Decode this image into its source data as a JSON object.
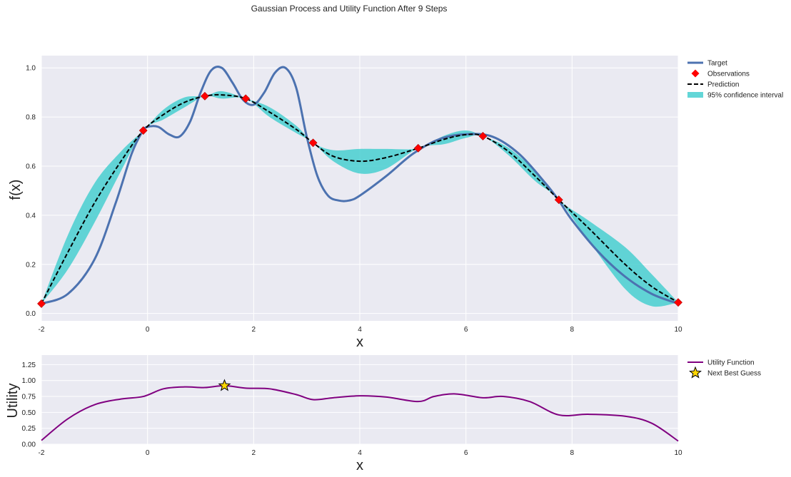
{
  "figure": {
    "suptitle": "Gaussian Process and Utility Function After 9 Steps",
    "background": "#eaeaf2",
    "grid_color": "#ffffff"
  },
  "chart_data": [
    {
      "type": "line",
      "xlabel": "x",
      "ylabel": "f(x)",
      "xlim": [
        -2,
        10
      ],
      "ylim": [
        -0.03,
        1.05
      ],
      "xticks": [
        -2,
        0,
        2,
        4,
        6,
        8,
        10
      ],
      "yticks": [
        0.0,
        0.2,
        0.4,
        0.6,
        0.8,
        1.0
      ],
      "grid": true,
      "legend_position": "outside-top-right",
      "legend": [
        "Target",
        "Observations",
        "Prediction",
        "95% confidence interval"
      ],
      "colors": {
        "target": "#4c72b0",
        "observations": "#ff0000",
        "prediction": "#000000",
        "confidence": "#48cfd0"
      },
      "target": {
        "x": [
          -2,
          -1.5,
          -1,
          -0.6,
          -0.3,
          -0.1,
          0,
          0.2,
          0.4,
          0.6,
          0.8,
          1.0,
          1.2,
          1.4,
          1.6,
          1.8,
          2.0,
          2.2,
          2.4,
          2.6,
          2.8,
          3.0,
          3.2,
          3.4,
          3.6,
          3.8,
          4.0,
          4.5,
          5.0,
          5.5,
          6.0,
          6.5,
          7.0,
          7.5,
          7.75,
          8.0,
          8.5,
          9.0,
          9.5,
          10
        ],
        "y": [
          0.04,
          0.08,
          0.22,
          0.45,
          0.65,
          0.74,
          0.76,
          0.76,
          0.73,
          0.72,
          0.78,
          0.9,
          0.99,
          1.0,
          0.94,
          0.87,
          0.85,
          0.9,
          0.98,
          1.0,
          0.92,
          0.72,
          0.56,
          0.48,
          0.46,
          0.46,
          0.48,
          0.56,
          0.65,
          0.71,
          0.73,
          0.72,
          0.65,
          0.53,
          0.46,
          0.38,
          0.25,
          0.15,
          0.08,
          0.04
        ]
      },
      "observations": {
        "x": [
          -2,
          -0.08,
          1.08,
          1.85,
          3.12,
          5.1,
          6.32,
          7.75,
          10
        ],
        "y": [
          0.04,
          0.745,
          0.885,
          0.875,
          0.695,
          0.673,
          0.722,
          0.463,
          0.045
        ]
      },
      "prediction": {
        "x": [
          -2,
          -1.5,
          -1,
          -0.5,
          -0.08,
          0.3,
          0.7,
          1.08,
          1.4,
          1.85,
          2.3,
          2.8,
          3.12,
          3.5,
          4.0,
          4.5,
          5.1,
          5.6,
          6.0,
          6.32,
          6.8,
          7.3,
          7.75,
          8.3,
          9.0,
          9.5,
          10
        ],
        "y": [
          0.04,
          0.25,
          0.45,
          0.62,
          0.745,
          0.81,
          0.86,
          0.885,
          0.89,
          0.875,
          0.82,
          0.75,
          0.695,
          0.64,
          0.62,
          0.635,
          0.673,
          0.71,
          0.728,
          0.722,
          0.66,
          0.56,
          0.463,
          0.35,
          0.2,
          0.11,
          0.045
        ]
      },
      "confidence_interval": {
        "x": [
          -2,
          -1.5,
          -1,
          -0.5,
          -0.08,
          0.3,
          0.7,
          1.08,
          1.4,
          1.85,
          2.3,
          2.8,
          3.12,
          3.5,
          4.0,
          4.5,
          5.1,
          5.6,
          6.0,
          6.32,
          6.8,
          7.3,
          7.75,
          8.3,
          9.0,
          9.5,
          10
        ],
        "lower": [
          0.04,
          0.18,
          0.37,
          0.58,
          0.745,
          0.79,
          0.84,
          0.885,
          0.875,
          0.875,
          0.8,
          0.735,
          0.695,
          0.62,
          0.57,
          0.59,
          0.673,
          0.69,
          0.715,
          0.722,
          0.645,
          0.54,
          0.463,
          0.3,
          0.1,
          0.03,
          0.045
        ],
        "upper": [
          0.04,
          0.32,
          0.53,
          0.66,
          0.745,
          0.83,
          0.88,
          0.885,
          0.905,
          0.875,
          0.84,
          0.765,
          0.695,
          0.665,
          0.67,
          0.67,
          0.673,
          0.725,
          0.745,
          0.722,
          0.675,
          0.58,
          0.463,
          0.38,
          0.27,
          0.16,
          0.045
        ]
      }
    },
    {
      "type": "line",
      "xlabel": "x",
      "ylabel": "Utility",
      "xlim": [
        -2,
        10
      ],
      "ylim": [
        0,
        1.4
      ],
      "xticks": [
        -2,
        0,
        2,
        4,
        6,
        8,
        10
      ],
      "yticks": [
        0.0,
        0.25,
        0.5,
        0.75,
        1.0,
        1.25
      ],
      "grid": true,
      "legend_position": "outside-top-right",
      "legend": [
        "Utility Function",
        "Next Best Guess"
      ],
      "colors": {
        "utility": "#800080",
        "next_best": "#ffd700"
      },
      "utility": {
        "x": [
          -2,
          -1.5,
          -1,
          -0.5,
          -0.08,
          0.3,
          0.7,
          1.08,
          1.45,
          1.85,
          2.3,
          2.8,
          3.12,
          3.5,
          4.0,
          4.5,
          5.1,
          5.4,
          5.8,
          6.32,
          6.7,
          7.2,
          7.75,
          8.3,
          9.0,
          9.5,
          10
        ],
        "y": [
          0.06,
          0.4,
          0.62,
          0.71,
          0.75,
          0.87,
          0.9,
          0.89,
          0.92,
          0.88,
          0.87,
          0.78,
          0.7,
          0.73,
          0.76,
          0.74,
          0.67,
          0.75,
          0.79,
          0.73,
          0.75,
          0.67,
          0.46,
          0.47,
          0.44,
          0.33,
          0.05
        ]
      },
      "next_best_guess": {
        "x": 1.45,
        "y": 0.92
      }
    }
  ]
}
